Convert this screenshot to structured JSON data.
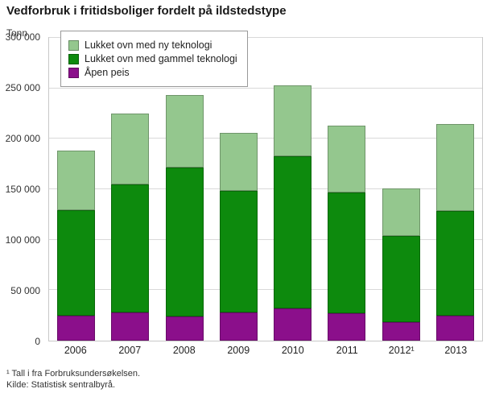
{
  "chart_data": {
    "type": "bar",
    "stacked": true,
    "title": "Vedforbruk i fritidsboliger fordelt på ildstedstype",
    "ylabel": "Tonn",
    "xlabel": "",
    "ylim": [
      0,
      300000
    ],
    "ytick_step": 50000,
    "ytick_labels": [
      "0",
      "50 000",
      "100 000",
      "150 000",
      "200 000",
      "250 000",
      "300 000"
    ],
    "grid": "horizontal",
    "legend_position": "top-left",
    "categories": [
      "2006",
      "2007",
      "2008",
      "2009",
      "2010",
      "2011",
      "2012¹",
      "2013"
    ],
    "series": [
      {
        "name": "Åpen peis",
        "color": "#8b0f8b",
        "values": [
          24000,
          27000,
          23000,
          27000,
          31000,
          26000,
          17000,
          24000
        ]
      },
      {
        "name": "Lukket ovn med gammel teknologi",
        "color": "#0d8a0d",
        "values": [
          105000,
          128000,
          149000,
          122000,
          152000,
          121000,
          87000,
          104000
        ]
      },
      {
        "name": "Lukket ovn med ny teknologi",
        "color": "#94c78e",
        "values": [
          59000,
          70000,
          71000,
          57000,
          70000,
          66000,
          47000,
          87000
        ]
      }
    ],
    "legend": [
      {
        "label": "Lukket ovn med ny teknologi",
        "color": "#94c78e"
      },
      {
        "label": "Lukket ovn med gammel teknologi",
        "color": "#0d8a0d"
      },
      {
        "label": "Åpen peis",
        "color": "#8b0f8b"
      }
    ],
    "footnotes": [
      "¹ Tall i fra Forbruksundersøkelsen.",
      "Kilde: Statistisk sentralbyrå."
    ]
  }
}
